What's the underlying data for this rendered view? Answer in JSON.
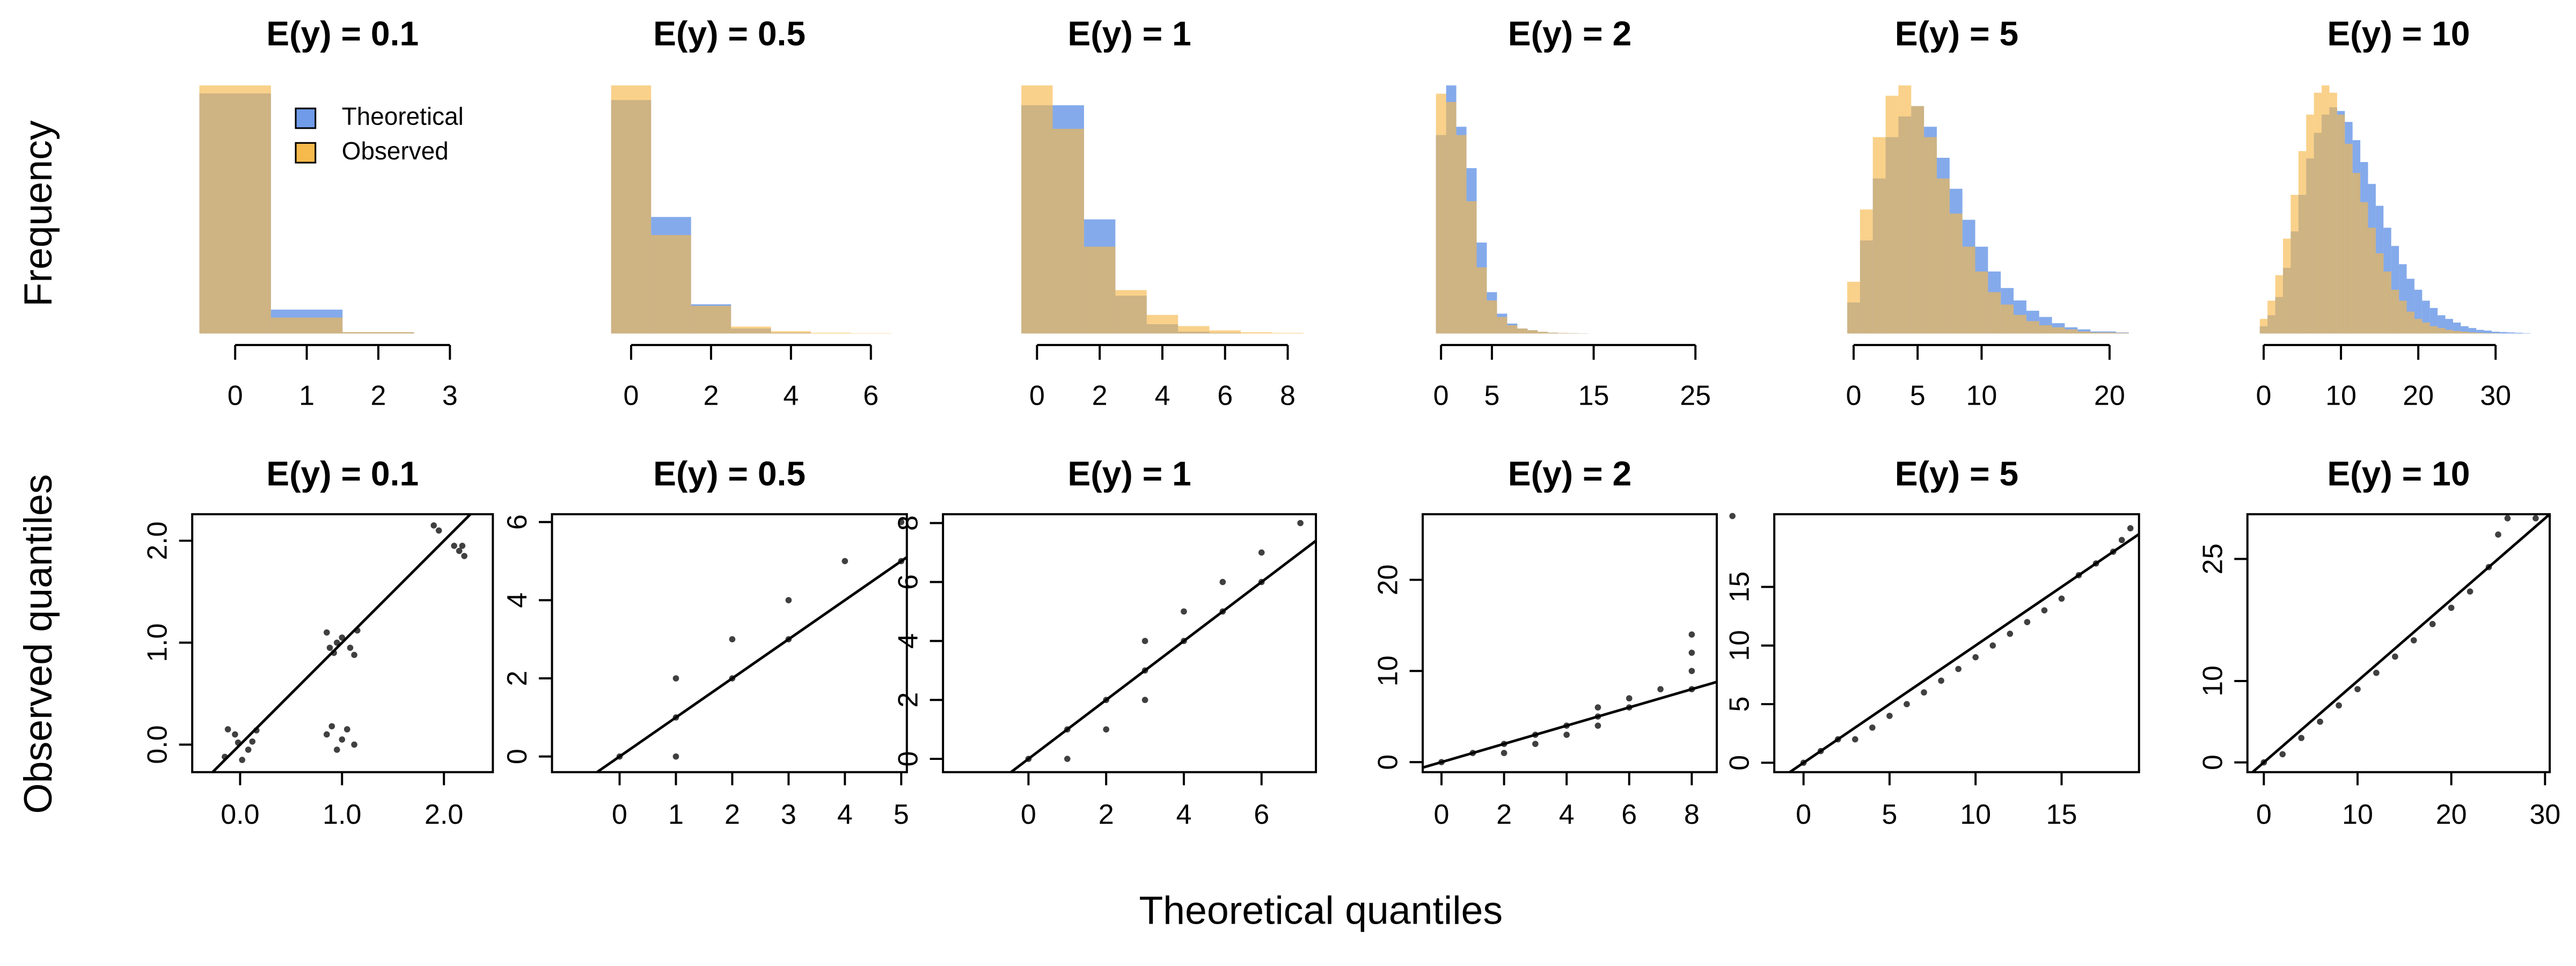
{
  "figure": {
    "ylabel_top": "Frequency",
    "ylabel_bottom": "Observed quantiles",
    "xlabel": "Theoretical quantiles"
  },
  "chart_data": [
    {
      "type": "histogram",
      "title": "E(y) = 0.1",
      "bins": [
        -0.5,
        0.5,
        1.5,
        2.5,
        3.5
      ],
      "series": [
        {
          "name": "Theoretical",
          "color": "#6f9be8",
          "values": [
            905,
            90,
            5,
            0
          ]
        },
        {
          "name": "Observed",
          "color": "#f6b94b",
          "values": [
            935,
            60,
            5,
            0
          ]
        }
      ],
      "xlim": [
        -0.6,
        3.6
      ],
      "xticks": [
        0,
        1,
        2,
        3
      ],
      "legend": "top-right"
    },
    {
      "type": "histogram",
      "title": "E(y) = 0.5",
      "bins": [
        -0.5,
        0.5,
        1.5,
        2.5,
        3.5,
        4.5,
        5.5,
        6.5
      ],
      "series": [
        {
          "color": "#6f9be8",
          "values": [
            607,
            303,
            76,
            13,
            2,
            0,
            0
          ]
        },
        {
          "color": "#f6b94b",
          "values": [
            645,
            256,
            72,
            18,
            6,
            2,
            1
          ]
        }
      ],
      "xlim": [
        -1.98,
        6.9
      ],
      "xticks": [
        0,
        2,
        4,
        6
      ]
    },
    {
      "type": "histogram",
      "title": "E(y) = 1",
      "bins": [
        -0.5,
        0.5,
        1.5,
        2.5,
        3.5,
        4.5,
        5.5,
        6.5,
        7.5,
        8.5
      ],
      "series": [
        {
          "color": "#6f9be8",
          "values": [
            368,
            368,
            184,
            61,
            15,
            3,
            1,
            0,
            0
          ]
        },
        {
          "color": "#f6b94b",
          "values": [
            400,
            330,
            140,
            70,
            30,
            12,
            5,
            2,
            1
          ]
        }
      ],
      "xlim": [
        -3.0,
        8.9
      ],
      "xticks": [
        0,
        2,
        4,
        6,
        8
      ]
    },
    {
      "type": "histogram",
      "title": "E(y) = 2",
      "bins": [
        -0.5,
        0.5,
        1.5,
        2.5,
        3.5,
        4.5,
        5.5,
        6.5,
        7.5,
        8.5,
        9.5,
        10.5,
        11.5,
        12.5,
        13.5,
        14.5
      ],
      "series": [
        {
          "color": "#6f9be8",
          "values": [
            120,
            150,
            125,
            100,
            55,
            25,
            12,
            6,
            3,
            2,
            1,
            0.5,
            0.3,
            0.2,
            0.1
          ]
        },
        {
          "color": "#f6b94b",
          "values": [
            145,
            140,
            120,
            80,
            40,
            20,
            10,
            5,
            3,
            2,
            1,
            0.5,
            0.3,
            0.2,
            0.1
          ]
        }
      ],
      "xlim": [
        -1.8,
        27.1
      ],
      "xticks": [
        0,
        5,
        15,
        25
      ]
    },
    {
      "type": "histogram",
      "title": "E(y) = 5",
      "bins": [
        -0.5,
        0.5,
        1.5,
        2.5,
        3.5,
        4.5,
        5.5,
        6.5,
        7.5,
        8.5,
        9.5,
        10.5,
        11.5,
        12.5,
        13.5,
        14.5,
        15.5,
        16.5,
        17.5,
        18.5,
        19.5,
        20.5,
        21.5
      ],
      "series": [
        {
          "color": "#6f9be8",
          "values": [
            15,
            45,
            75,
            95,
            105,
            110,
            100,
            85,
            70,
            55,
            42,
            30,
            22,
            16,
            11,
            8,
            5,
            3,
            2,
            1,
            1,
            0.5
          ]
        },
        {
          "color": "#f6b94b",
          "values": [
            25,
            60,
            95,
            115,
            120,
            110,
            95,
            75,
            58,
            42,
            30,
            20,
            14,
            9,
            6,
            4,
            3,
            2,
            1,
            0.5,
            0.5,
            0.3
          ]
        }
      ],
      "xlim": [
        -6.2,
        22.3
      ],
      "xticks": [
        0,
        5,
        10,
        20
      ]
    },
    {
      "type": "histogram",
      "title": "E(y) = 10",
      "bins": [
        -0.5,
        0.5,
        1.5,
        2.5,
        3.5,
        4.5,
        5.5,
        6.5,
        7.5,
        8.5,
        9.5,
        10.5,
        11.5,
        12.5,
        13.5,
        14.5,
        15.5,
        16.5,
        17.5,
        18.5,
        19.5,
        20.5,
        21.5,
        22.5,
        23.5,
        24.5,
        25.5,
        26.5,
        27.5,
        28.5,
        29.5,
        30.5,
        31.5,
        32.5,
        33.5,
        34.5
      ],
      "series": [
        {
          "color": "#6f9be8",
          "values": [
            2,
            5,
            10,
            18,
            28,
            38,
            48,
            55,
            60,
            62,
            61,
            58,
            53,
            47,
            41,
            35,
            29,
            24,
            19,
            15,
            12,
            9,
            7,
            5,
            4,
            3,
            2,
            1.5,
            1,
            0.8,
            0.5,
            0.4,
            0.3,
            0.2,
            0.1
          ]
        },
        {
          "color": "#f6b94b",
          "values": [
            4,
            9,
            16,
            26,
            38,
            50,
            60,
            66,
            68,
            66,
            60,
            52,
            44,
            36,
            29,
            22,
            17,
            12,
            9,
            6,
            4,
            3,
            2,
            1.5,
            1,
            0.7,
            0.5,
            0.3,
            0.2,
            0.1,
            0.1,
            0,
            0,
            0,
            0
          ]
        }
      ],
      "xlim": [
        -2.1,
        37.0
      ],
      "xticks": [
        0,
        10,
        20,
        30
      ]
    },
    {
      "type": "scatter",
      "title": "E(y) = 0.1",
      "color": "#404040",
      "x": [
        -0.15,
        -0.05,
        0.08,
        0.16,
        -0.12,
        0.02,
        0.12,
        -0.02,
        0.85,
        0.92,
        1.0,
        1.08,
        1.15,
        0.95,
        1.12,
        0.88,
        0.85,
        0.95,
        1.05,
        1.12,
        0.9,
        1.0,
        1.9,
        1.95,
        2.1,
        2.15,
        2.2,
        2.18
      ],
      "y": [
        -0.12,
        0.1,
        -0.05,
        0.14,
        0.15,
        -0.15,
        0.03,
        0.02,
        1.1,
        0.9,
        1.05,
        0.95,
        1.12,
        1.0,
        0.88,
        0.95,
        0.1,
        -0.05,
        0.15,
        0.0,
        0.18,
        0.05,
        2.15,
        2.1,
        1.95,
        1.9,
        1.85,
        1.95
      ],
      "xlim": [
        -0.47,
        2.48
      ],
      "ylim": [
        -0.27,
        2.26
      ],
      "xticks": [
        {
          "value": 0,
          "label": "0.0"
        },
        {
          "value": 1,
          "label": "1.0"
        },
        {
          "value": 2,
          "label": "2.0"
        }
      ],
      "yticks": [
        {
          "value": 0,
          "label": "0.0"
        },
        {
          "value": 1,
          "label": "1.0"
        },
        {
          "value": 2,
          "label": "2.0"
        }
      ],
      "reference_line": {
        "intercept": 0,
        "slope": 1
      }
    },
    {
      "type": "scatter",
      "title": "E(y) = 0.5",
      "color": "#404040",
      "x": [
        0,
        1,
        1,
        1,
        2,
        2,
        3,
        3,
        4,
        5,
        5
      ],
      "y": [
        0,
        0,
        1,
        2,
        2,
        3,
        3,
        4,
        5,
        5,
        6
      ],
      "xlim": [
        -1.2,
        5.1
      ],
      "ylim": [
        -0.4,
        6.2
      ],
      "xticks": [
        0,
        1,
        2,
        3,
        4,
        5
      ],
      "yticks": [
        0,
        2,
        4,
        6
      ],
      "reference_line": {
        "intercept": 0,
        "slope": 1
      }
    },
    {
      "type": "scatter",
      "title": "E(y) = 1",
      "color": "#404040",
      "x": [
        0,
        1,
        1,
        2,
        2,
        3,
        3,
        3,
        4,
        4,
        5,
        5,
        6,
        6,
        7
      ],
      "y": [
        0,
        0,
        1,
        1,
        2,
        2,
        3,
        4,
        4,
        5,
        5,
        6,
        6,
        7,
        8
      ],
      "xlim": [
        -2.2,
        7.4
      ],
      "ylim": [
        -0.45,
        8.3
      ],
      "xticks": [
        0,
        2,
        4,
        6
      ],
      "yticks": [
        0,
        2,
        4,
        6,
        8
      ],
      "reference_line": {
        "intercept": 0,
        "slope": 1
      }
    },
    {
      "type": "scatter",
      "title": "E(y) = 2",
      "color": "#404040",
      "x": [
        0,
        1,
        2,
        2,
        3,
        3,
        4,
        4,
        5,
        5,
        5,
        6,
        6,
        7,
        8,
        8,
        8,
        8,
        9.3
      ],
      "y": [
        0,
        1,
        1,
        2,
        2,
        3,
        3,
        4,
        4,
        5,
        6,
        6,
        7,
        8,
        8,
        10,
        12,
        14,
        27
      ],
      "xlim": [
        -0.6,
        8.8
      ],
      "ylim": [
        -1.1,
        27.2
      ],
      "xticks": [
        0,
        2,
        4,
        6,
        8
      ],
      "yticks": [
        0,
        10,
        20
      ],
      "reference_line": {
        "intercept": 0,
        "slope": 1
      }
    },
    {
      "type": "scatter",
      "title": "E(y) = 5",
      "color": "#404040",
      "x": [
        0,
        1,
        2,
        3,
        4,
        5,
        6,
        7,
        8,
        9,
        10,
        11,
        12,
        13,
        14,
        15,
        16,
        17,
        18,
        18.5,
        19
      ],
      "y": [
        0,
        1,
        2,
        2,
        3,
        4,
        5,
        6,
        7,
        8,
        9,
        10,
        11,
        12,
        13,
        14,
        16,
        17,
        18,
        19,
        20
      ],
      "xlim": [
        -1.7,
        19.5
      ],
      "ylim": [
        -0.8,
        21.2
      ],
      "xticks": [
        0,
        5,
        10,
        15
      ],
      "yticks": [
        0,
        5,
        10,
        15
      ],
      "reference_line": {
        "intercept": 0,
        "slope": 1
      }
    },
    {
      "type": "scatter",
      "title": "E(y) = 10",
      "color": "#404040",
      "x": [
        0,
        2,
        4,
        6,
        8,
        10,
        12,
        14,
        16,
        18,
        20,
        22,
        24,
        25,
        26,
        29
      ],
      "y": [
        0,
        1,
        3,
        5,
        7,
        9,
        11,
        13,
        15,
        17,
        19,
        21,
        24,
        28,
        30,
        30
      ],
      "xlim": [
        -1.75,
        30.5
      ],
      "ylim": [
        -1.2,
        30.5
      ],
      "xticks": [
        0,
        10,
        20,
        30
      ],
      "yticks": [
        0,
        10,
        25
      ],
      "reference_line": {
        "intercept": 0,
        "slope": 1
      }
    }
  ]
}
